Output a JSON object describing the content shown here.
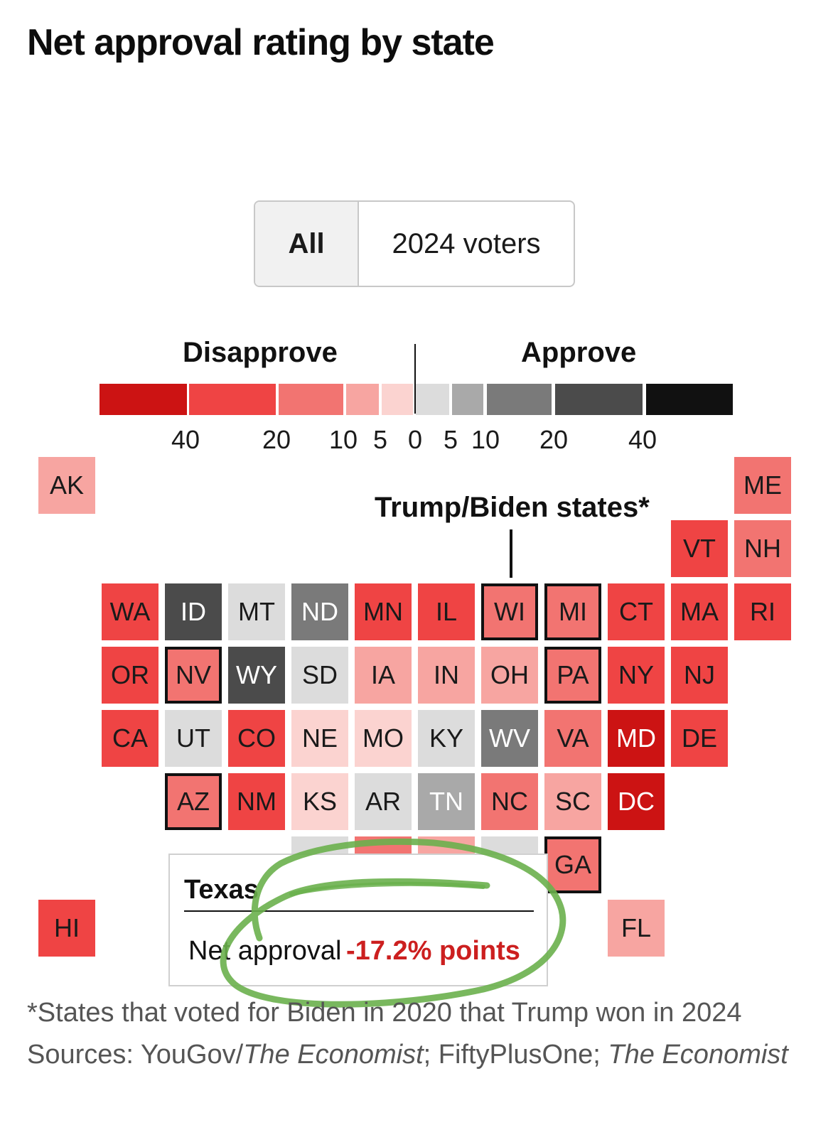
{
  "chart_data": {
    "type": "tile-grid-map",
    "title": "Net approval rating by state",
    "toggle": {
      "options": [
        "All",
        "2024 voters"
      ],
      "selected": "All"
    },
    "legend": {
      "disapprove_label": "Disapprove",
      "approve_label": "Approve",
      "ticks": [
        "40",
        "20",
        "10",
        "5",
        "0",
        "5",
        "10",
        "20",
        "40"
      ],
      "bins": [
        {
          "range": "below -40",
          "color": "#cc1313"
        },
        {
          "range": "-40 to -20",
          "color": "#ef4444"
        },
        {
          "range": "-20 to -10",
          "color": "#f27471"
        },
        {
          "range": "-10 to -5",
          "color": "#f7a5a1"
        },
        {
          "range": "-5 to 0",
          "color": "#fbd3d0"
        },
        {
          "range": "0 to 5",
          "color": "#dcdcdc"
        },
        {
          "range": "5 to 10",
          "color": "#a9a9a9"
        },
        {
          "range": "10 to 20",
          "color": "#7a7a7a"
        },
        {
          "range": "20 to 40",
          "color": "#4b4b4b"
        },
        {
          "range": "above 40",
          "color": "#111111"
        }
      ]
    },
    "states": [
      {
        "abbr": "AK",
        "bin": 3
      },
      {
        "abbr": "ME",
        "bin": 2
      },
      {
        "abbr": "VT",
        "bin": 1
      },
      {
        "abbr": "NH",
        "bin": 2
      },
      {
        "abbr": "WA",
        "bin": 1
      },
      {
        "abbr": "ID",
        "bin": 8
      },
      {
        "abbr": "MT",
        "bin": 5
      },
      {
        "abbr": "ND",
        "bin": 7
      },
      {
        "abbr": "MN",
        "bin": 1
      },
      {
        "abbr": "IL",
        "bin": 1
      },
      {
        "abbr": "WI",
        "bin": 2
      },
      {
        "abbr": "MI",
        "bin": 2
      },
      {
        "abbr": "CT",
        "bin": 1
      },
      {
        "abbr": "MA",
        "bin": 1
      },
      {
        "abbr": "RI",
        "bin": 1
      },
      {
        "abbr": "OR",
        "bin": 1
      },
      {
        "abbr": "NV",
        "bin": 2
      },
      {
        "abbr": "WY",
        "bin": 8
      },
      {
        "abbr": "SD",
        "bin": 5
      },
      {
        "abbr": "IA",
        "bin": 3
      },
      {
        "abbr": "IN",
        "bin": 3
      },
      {
        "abbr": "OH",
        "bin": 3
      },
      {
        "abbr": "PA",
        "bin": 2
      },
      {
        "abbr": "NY",
        "bin": 1
      },
      {
        "abbr": "NJ",
        "bin": 1
      },
      {
        "abbr": "CA",
        "bin": 1
      },
      {
        "abbr": "UT",
        "bin": 5
      },
      {
        "abbr": "CO",
        "bin": 1
      },
      {
        "abbr": "NE",
        "bin": 4
      },
      {
        "abbr": "MO",
        "bin": 4
      },
      {
        "abbr": "KY",
        "bin": 5
      },
      {
        "abbr": "WV",
        "bin": 7
      },
      {
        "abbr": "VA",
        "bin": 2
      },
      {
        "abbr": "MD",
        "bin": 0
      },
      {
        "abbr": "DE",
        "bin": 1
      },
      {
        "abbr": "AZ",
        "bin": 2
      },
      {
        "abbr": "NM",
        "bin": 1
      },
      {
        "abbr": "KS",
        "bin": 4
      },
      {
        "abbr": "AR",
        "bin": 5
      },
      {
        "abbr": "TN",
        "bin": 6
      },
      {
        "abbr": "NC",
        "bin": 2
      },
      {
        "abbr": "SC",
        "bin": 3
      },
      {
        "abbr": "DC",
        "bin": 0
      },
      {
        "abbr": "GA",
        "bin": 2
      },
      {
        "abbr": "HI",
        "bin": 1
      },
      {
        "abbr": "FL",
        "bin": 3
      }
    ],
    "flip_states": [
      "WI",
      "MI",
      "NV",
      "PA",
      "AZ",
      "GA"
    ],
    "flip_label": "Trump/Biden states*",
    "tooltip": {
      "state": "Texas",
      "label": "Net approval",
      "value": "-17.2% points"
    }
  },
  "footnote": "*States that voted for Biden in 2020 that Trump won in 2024",
  "sources": {
    "prefix": "Sources: YouGov/",
    "economist_1": "The Economist",
    "middle": "; FiftyPlusOne; ",
    "economist_2": "The Economist"
  }
}
